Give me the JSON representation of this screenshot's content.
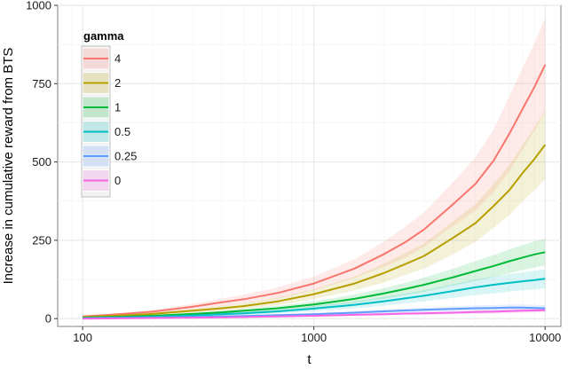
{
  "chart_data": {
    "type": "line",
    "title": "",
    "xlabel": "t",
    "ylabel": "Increase in cumulative reward from BTS",
    "x_scale": "log",
    "xlim": [
      78,
      11700
    ],
    "ylim": [
      -25,
      1000
    ],
    "x_ticks": [
      100,
      1000,
      10000
    ],
    "x_tick_labels": [
      "100",
      "1000",
      "10000"
    ],
    "y_ticks": [
      0,
      250,
      500,
      750,
      1000
    ],
    "y_tick_labels": [
      "0",
      "250",
      "500",
      "750",
      "1000"
    ],
    "grid": true,
    "legend": {
      "title": "gamma",
      "position": "top-left"
    },
    "x": [
      100,
      150,
      200,
      300,
      400,
      500,
      700,
      1000,
      1500,
      2000,
      2500,
      3000,
      4000,
      5000,
      6000,
      7000,
      8000,
      9000,
      10000
    ],
    "series": [
      {
        "name": "4",
        "color": "#F8766D",
        "values": [
          7,
          15,
          22,
          38,
          52,
          62,
          82,
          112,
          160,
          205,
          245,
          285,
          365,
          430,
          505,
          590,
          670,
          740,
          810
        ],
        "lower": [
          5,
          11,
          16,
          29,
          40,
          48,
          64,
          90,
          130,
          165,
          195,
          230,
          295,
          345,
          405,
          470,
          540,
          600,
          660
        ],
        "upper": [
          9,
          19,
          28,
          47,
          64,
          76,
          100,
          134,
          190,
          245,
          295,
          340,
          435,
          515,
          605,
          710,
          800,
          880,
          960
        ]
      },
      {
        "name": "2",
        "color": "#B79F00",
        "values": [
          5,
          10,
          15,
          25,
          33,
          40,
          55,
          78,
          112,
          145,
          175,
          200,
          258,
          305,
          360,
          410,
          465,
          510,
          555
        ],
        "lower": [
          4,
          7,
          11,
          19,
          25,
          31,
          43,
          62,
          90,
          115,
          140,
          160,
          205,
          245,
          290,
          330,
          375,
          410,
          445
        ],
        "upper": [
          6,
          13,
          19,
          31,
          41,
          49,
          67,
          94,
          134,
          175,
          210,
          240,
          311,
          365,
          430,
          490,
          555,
          610,
          665
        ]
      },
      {
        "name": "1",
        "color": "#00BA38",
        "values": [
          3,
          6,
          9,
          15,
          20,
          25,
          33,
          45,
          63,
          80,
          95,
          108,
          132,
          152,
          168,
          183,
          195,
          205,
          212
        ],
        "lower": [
          2,
          4,
          7,
          11,
          15,
          19,
          25,
          35,
          49,
          63,
          75,
          85,
          105,
          120,
          133,
          145,
          155,
          163,
          170
        ],
        "upper": [
          4,
          8,
          11,
          19,
          25,
          31,
          41,
          55,
          77,
          97,
          115,
          131,
          159,
          184,
          203,
          221,
          235,
          247,
          254
        ]
      },
      {
        "name": "0.5",
        "color": "#00BFC4",
        "values": [
          2,
          4,
          6,
          10,
          14,
          17,
          23,
          32,
          44,
          55,
          65,
          73,
          88,
          100,
          108,
          114,
          119,
          123,
          127
        ],
        "lower": [
          1,
          3,
          4,
          7,
          10,
          12,
          17,
          23,
          33,
          41,
          49,
          55,
          66,
          75,
          81,
          86,
          90,
          93,
          97
        ],
        "upper": [
          3,
          5,
          8,
          13,
          18,
          22,
          29,
          41,
          55,
          69,
          81,
          91,
          110,
          125,
          135,
          142,
          148,
          153,
          157
        ]
      },
      {
        "name": "0.25",
        "color": "#619CFF",
        "values": [
          1,
          2,
          3,
          5,
          7,
          8,
          11,
          14,
          19,
          23,
          26,
          28,
          31,
          33,
          34,
          35,
          35,
          34,
          33
        ],
        "lower": [
          0,
          1,
          2,
          3,
          5,
          6,
          8,
          10,
          14,
          17,
          19,
          21,
          23,
          24,
          25,
          25,
          25,
          24,
          23
        ],
        "upper": [
          2,
          3,
          4,
          7,
          9,
          10,
          14,
          18,
          24,
          29,
          33,
          35,
          39,
          42,
          43,
          45,
          45,
          44,
          43
        ]
      },
      {
        "name": "0",
        "color": "#F564E3",
        "values": [
          0,
          1,
          2,
          3,
          4,
          5,
          7,
          9,
          12,
          14,
          16,
          17,
          19,
          21,
          22,
          24,
          25,
          26,
          27
        ],
        "lower": [
          -1,
          0,
          1,
          2,
          3,
          3,
          5,
          6,
          9,
          10,
          12,
          12,
          14,
          15,
          16,
          17,
          18,
          19,
          19
        ],
        "upper": [
          1,
          2,
          3,
          4,
          5,
          7,
          9,
          12,
          15,
          18,
          20,
          22,
          24,
          27,
          28,
          31,
          32,
          33,
          35
        ]
      }
    ]
  }
}
